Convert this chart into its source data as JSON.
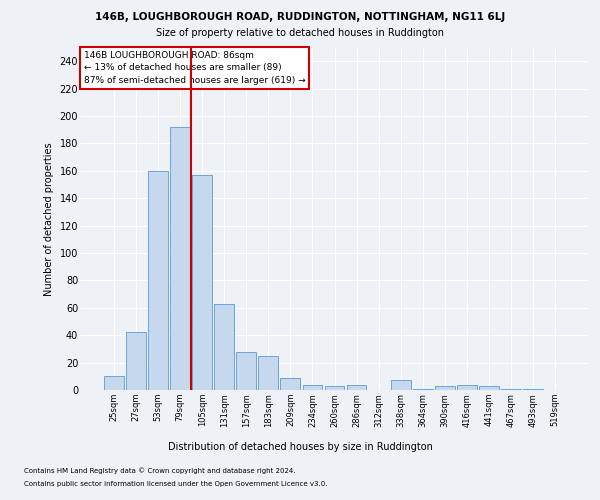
{
  "title_line1": "146B, LOUGHBOROUGH ROAD, RUDDINGTON, NOTTINGHAM, NG11 6LJ",
  "title_line2": "Size of property relative to detached houses in Ruddington",
  "xlabel": "Distribution of detached houses by size in Ruddington",
  "ylabel": "Number of detached properties",
  "bar_color": "#c5d8ed",
  "bar_edge_color": "#5b9bd5",
  "categories": [
    "25sqm",
    "27sqm",
    "53sqm",
    "79sqm",
    "105sqm",
    "131sqm",
    "157sqm",
    "183sqm",
    "209sqm",
    "234sqm",
    "260sqm",
    "286sqm",
    "312sqm",
    "338sqm",
    "364sqm",
    "390sqm",
    "416sqm",
    "441sqm",
    "467sqm",
    "493sqm",
    "519sqm"
  ],
  "values": [
    10,
    42,
    160,
    192,
    157,
    63,
    28,
    25,
    9,
    4,
    3,
    4,
    0,
    7,
    1,
    3,
    4,
    3,
    1,
    1,
    0
  ],
  "ylim": [
    0,
    250
  ],
  "yticks": [
    0,
    20,
    40,
    60,
    80,
    100,
    120,
    140,
    160,
    180,
    200,
    220,
    240
  ],
  "annotation_title": "146B LOUGHBOROUGH ROAD: 86sqm",
  "annotation_line2": "← 13% of detached houses are smaller (89)",
  "annotation_line3": "87% of semi-detached houses are larger (619) →",
  "footer_line1": "Contains HM Land Registry data © Crown copyright and database right 2024.",
  "footer_line2": "Contains public sector information licensed under the Open Government Licence v3.0.",
  "background_color": "#eef2f7",
  "grid_color": "#ffffff",
  "annotation_box_color": "#ffffff",
  "annotation_box_edge": "#cc0000",
  "red_line_color": "#cc0000",
  "red_line_x": 3.5
}
